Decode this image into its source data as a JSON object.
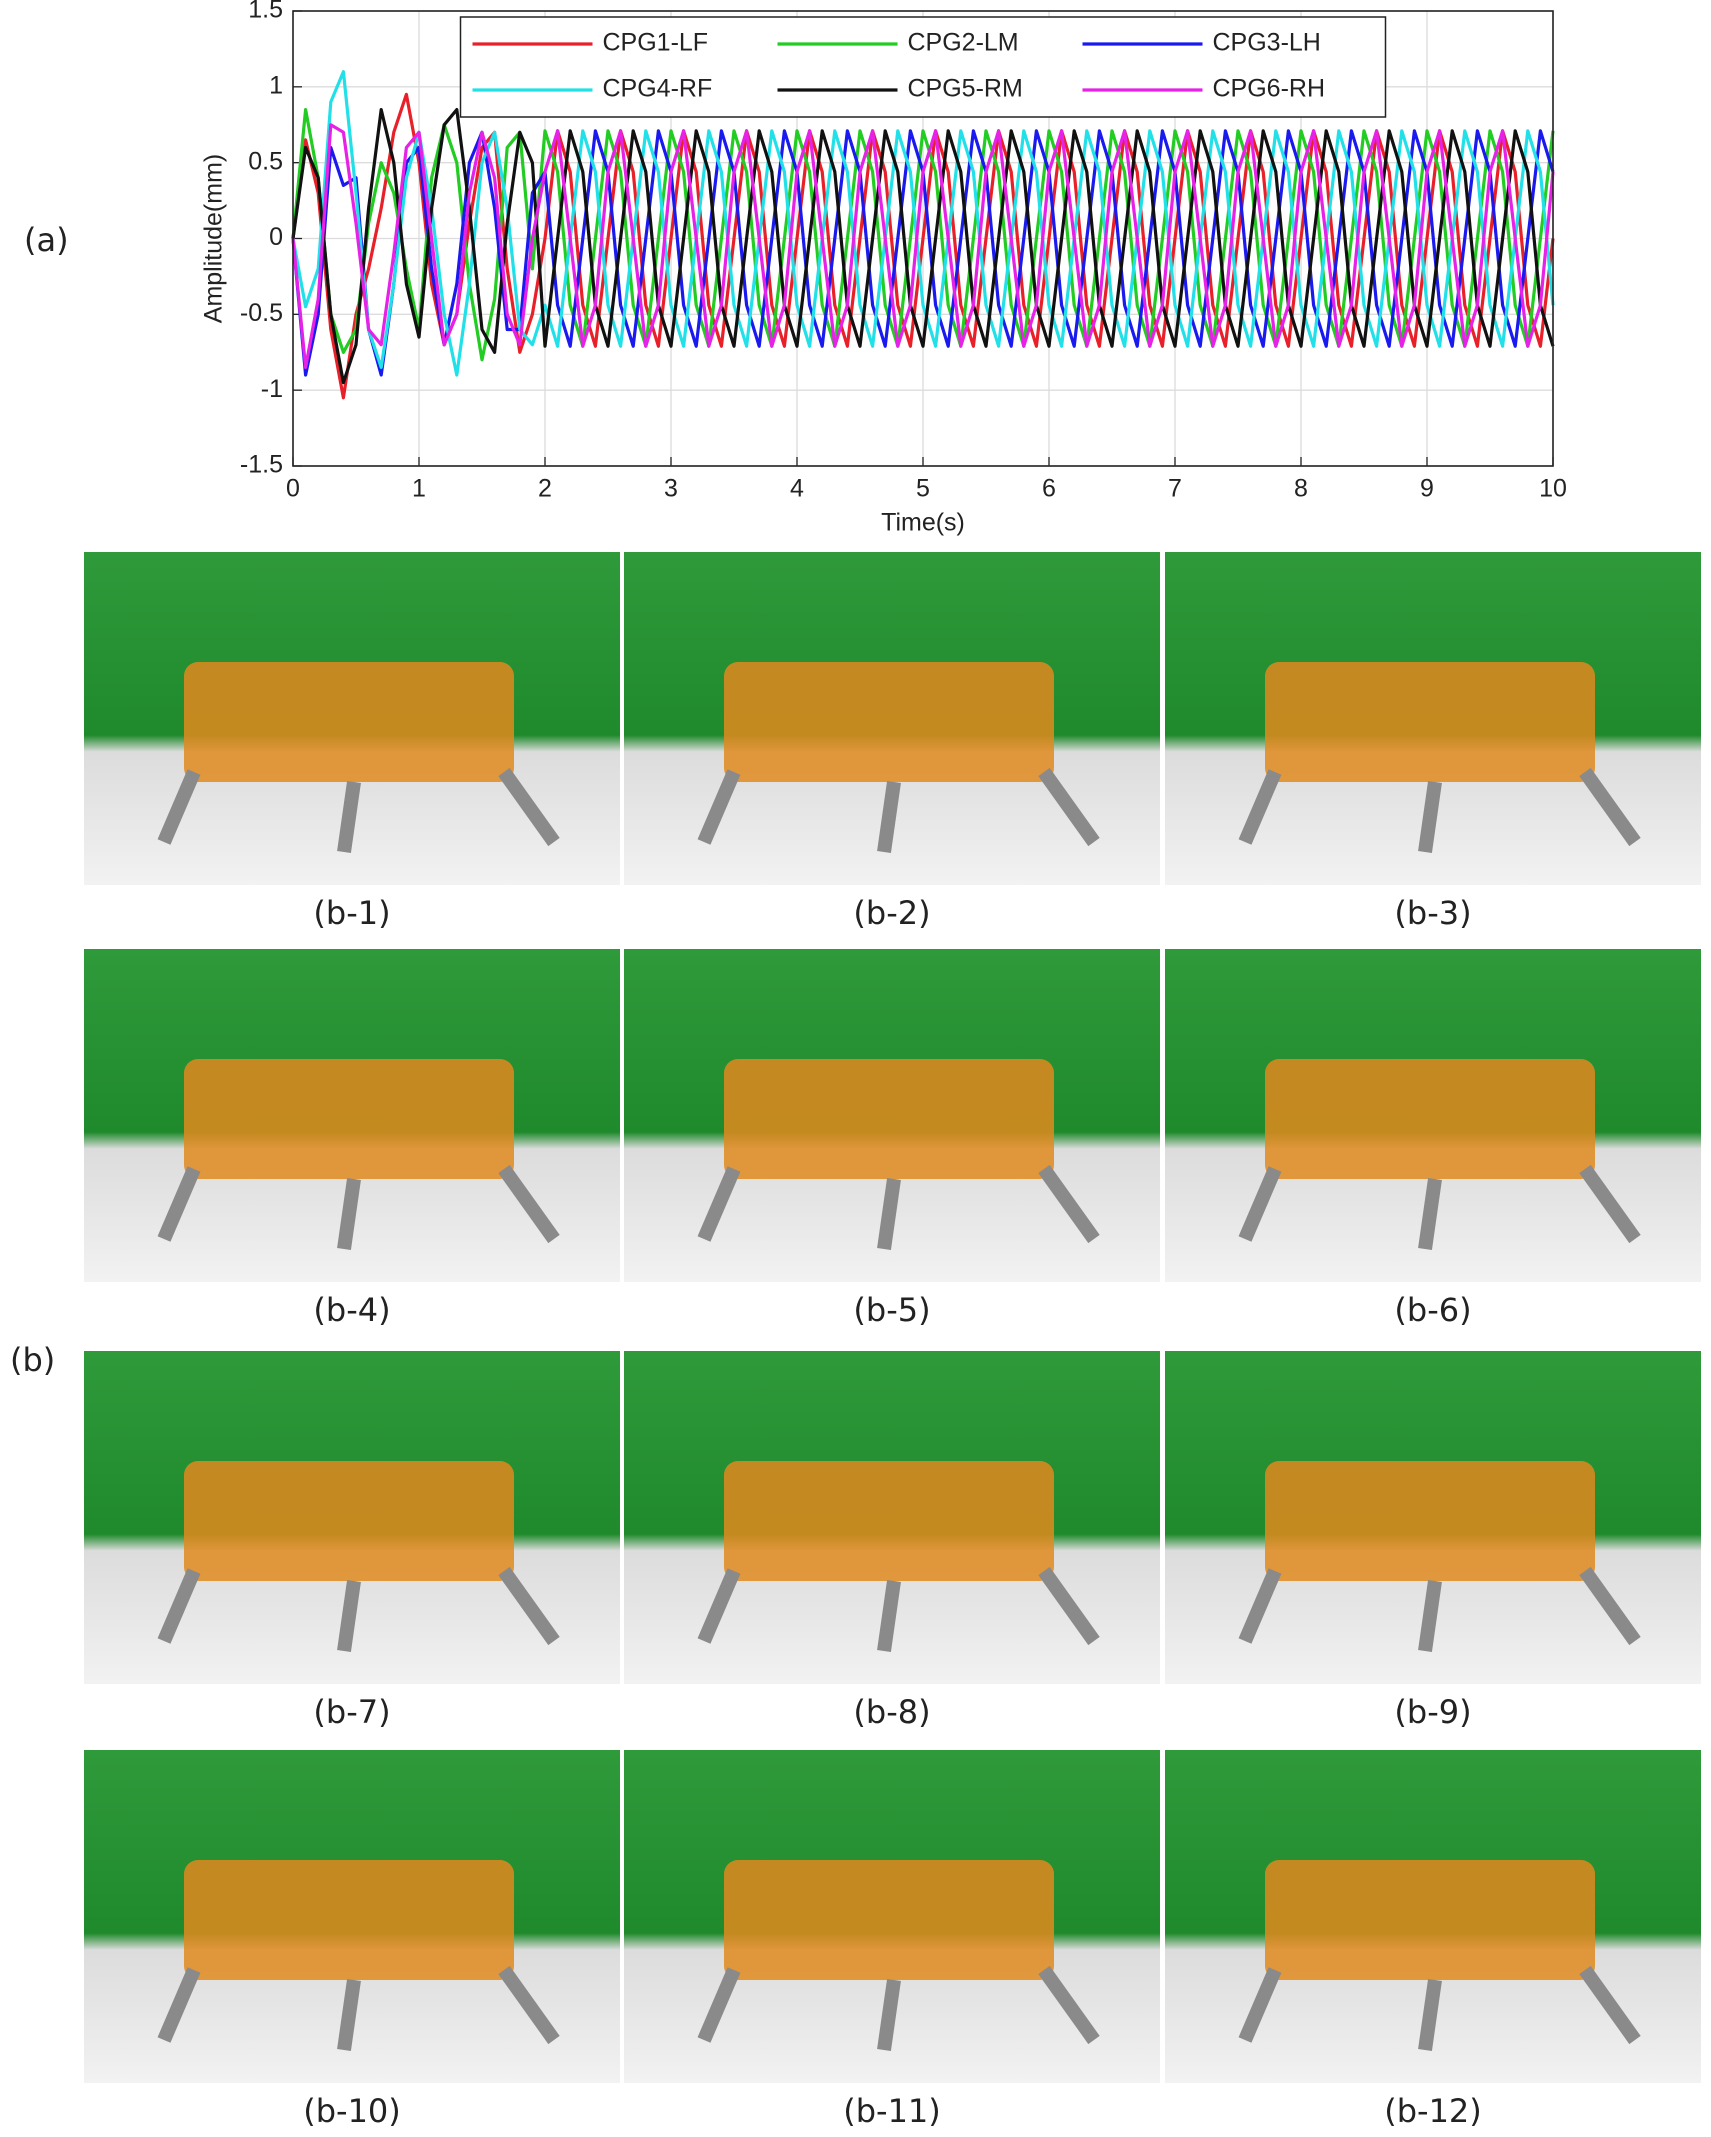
{
  "chart_data": {
    "type": "line",
    "xlabel": "Time(s)",
    "ylabel": "Amplitude(mm)",
    "xlim": [
      0,
      10
    ],
    "ylim": [
      -1.5,
      1.5
    ],
    "xticks": [
      0,
      1,
      2,
      3,
      4,
      5,
      6,
      7,
      8,
      9,
      10
    ],
    "yticks": [
      -1.5,
      -1,
      -0.5,
      0,
      0.5,
      1,
      1.5
    ],
    "grid": true,
    "legend_loc": "upper-center",
    "x": [
      0,
      0.1,
      0.2,
      0.3,
      0.4,
      0.5,
      0.6,
      0.7,
      0.8,
      0.9,
      1,
      1.1,
      1.2,
      1.3,
      1.4,
      1.5,
      1.6,
      1.7,
      1.8,
      1.9,
      2,
      2.1,
      2.2,
      2.3,
      2.4,
      2.5,
      2.6,
      2.7,
      2.8,
      2.9,
      3,
      3.1,
      3.2,
      3.3,
      3.4,
      3.5,
      3.6,
      3.7,
      3.8,
      3.9,
      4,
      4.1,
      4.2,
      4.3,
      4.4,
      4.5,
      4.6,
      4.7,
      4.8,
      4.9,
      5,
      5.1,
      5.2,
      5.3,
      5.4,
      5.5,
      5.6,
      5.7,
      5.8,
      5.9,
      6,
      6.1,
      6.2,
      6.3,
      6.4,
      6.5,
      6.6,
      6.7,
      6.8,
      6.9,
      7,
      7.1,
      7.2,
      7.3,
      7.4,
      7.5,
      7.6,
      7.7,
      7.8,
      7.9,
      8,
      8.1,
      8.2,
      8.3,
      8.4,
      8.5,
      8.6,
      8.7,
      8.8,
      8.9,
      9,
      9.1,
      9.2,
      9.3,
      9.4,
      9.5,
      9.6,
      9.7,
      9.8,
      9.9,
      10
    ],
    "series": [
      {
        "name": "CPG1-LF",
        "color": "#e8202a",
        "values": [
          0,
          0.65,
          0.3,
          -0.6,
          -1.05,
          -0.5,
          -0.2,
          0.2,
          0.7,
          0.95,
          0.5,
          -0.3,
          -0.7,
          -0.5,
          0.1,
          0.6,
          0.7,
          -0.2,
          -0.75,
          -0.5,
          0,
          0.71,
          0.44,
          -0.44,
          -0.71,
          0,
          0.71,
          0.44,
          -0.44,
          -0.71,
          0,
          0.71,
          0.44,
          -0.44,
          -0.71,
          0,
          0.71,
          0.44,
          -0.44,
          -0.71,
          0,
          0.71,
          0.44,
          -0.44,
          -0.71,
          0,
          0.71,
          0.44,
          -0.44,
          -0.71,
          0,
          0.71,
          0.44,
          -0.44,
          -0.71,
          0,
          0.71,
          0.44,
          -0.44,
          -0.71,
          0,
          0.71,
          0.44,
          -0.44,
          -0.71,
          0,
          0.71,
          0.44,
          -0.44,
          -0.71,
          0,
          0.71,
          0.44,
          -0.44,
          -0.71,
          0,
          0.71,
          0.44,
          -0.44,
          -0.71,
          0,
          0.71,
          0.44,
          -0.44,
          -0.71,
          0,
          0.71,
          0.44,
          -0.44,
          -0.71,
          0,
          0.71,
          0.44,
          -0.44,
          -0.71,
          0,
          0.71,
          0.44,
          -0.44,
          -0.71,
          0
        ]
      },
      {
        "name": "CPG2-LM",
        "color": "#22cc22",
        "values": [
          0,
          0.85,
          0.4,
          -0.5,
          -0.75,
          -0.6,
          0.1,
          0.5,
          0.3,
          -0.2,
          -0.6,
          0.4,
          0.75,
          0.5,
          -0.3,
          -0.8,
          -0.4,
          0.6,
          0.7,
          -0.2,
          0.71,
          0.44,
          -0.44,
          -0.71,
          0,
          0.71,
          0.44,
          -0.44,
          -0.71,
          0,
          0.71,
          0.44,
          -0.44,
          -0.71,
          0,
          0.71,
          0.44,
          -0.44,
          -0.71,
          0,
          0.71,
          0.44,
          -0.44,
          -0.71,
          0,
          0.71,
          0.44,
          -0.44,
          -0.71,
          0,
          0.71,
          0.44,
          -0.44,
          -0.71,
          0,
          0.71,
          0.44,
          -0.44,
          -0.71,
          0,
          0.71,
          0.44,
          -0.44,
          -0.71,
          0,
          0.71,
          0.44,
          -0.44,
          -0.71,
          0,
          0.71,
          0.44,
          -0.44,
          -0.71,
          0,
          0.71,
          0.44,
          -0.44,
          -0.71,
          0,
          0.71,
          0.44,
          -0.44,
          -0.71,
          0,
          0.71,
          0.44,
          -0.44,
          -0.71,
          0,
          0.71,
          0.44,
          -0.44,
          -0.71,
          0,
          0.71,
          0.44,
          -0.44,
          -0.71,
          0,
          0.71
        ]
      },
      {
        "name": "CPG3-LH",
        "color": "#1a1aee",
        "values": [
          0,
          -0.9,
          -0.5,
          0.6,
          0.35,
          0.4,
          -0.6,
          -0.9,
          -0.3,
          0.5,
          0.6,
          -0.2,
          -0.7,
          -0.3,
          0.5,
          0.7,
          0.2,
          -0.6,
          -0.6,
          0.3,
          0.44,
          -0.44,
          -0.71,
          0,
          0.71,
          0.44,
          -0.44,
          -0.71,
          0,
          0.71,
          0.44,
          -0.44,
          -0.71,
          0,
          0.71,
          0.44,
          -0.44,
          -0.71,
          0,
          0.71,
          0.44,
          -0.44,
          -0.71,
          0,
          0.71,
          0.44,
          -0.44,
          -0.71,
          0,
          0.71,
          0.44,
          -0.44,
          -0.71,
          0,
          0.71,
          0.44,
          -0.44,
          -0.71,
          0,
          0.71,
          0.44,
          -0.44,
          -0.71,
          0,
          0.71,
          0.44,
          -0.44,
          -0.71,
          0,
          0.71,
          0.44,
          -0.44,
          -0.71,
          0,
          0.71,
          0.44,
          -0.44,
          -0.71,
          0,
          0.71,
          0.44,
          -0.44,
          -0.71,
          0,
          0.71,
          0.44,
          -0.44,
          -0.71,
          0,
          0.71,
          0.44,
          -0.44,
          -0.71,
          0,
          0.71,
          0.44,
          -0.44,
          -0.71,
          0,
          0.71,
          0.44
        ]
      },
      {
        "name": "CPG4-RF",
        "color": "#22e0e8",
        "values": [
          0,
          -0.45,
          -0.2,
          0.9,
          1.1,
          0.3,
          -0.6,
          -0.85,
          -0.3,
          0.4,
          0.7,
          0.2,
          -0.5,
          -0.9,
          -0.3,
          0.5,
          0.7,
          0.2,
          -0.6,
          -0.7,
          -0.44,
          -0.71,
          0,
          0.71,
          0.44,
          -0.44,
          -0.71,
          0,
          0.71,
          0.44,
          -0.44,
          -0.71,
          0,
          0.71,
          0.44,
          -0.44,
          -0.71,
          0,
          0.71,
          0.44,
          -0.44,
          -0.71,
          0,
          0.71,
          0.44,
          -0.44,
          -0.71,
          0,
          0.71,
          0.44,
          -0.44,
          -0.71,
          0,
          0.71,
          0.44,
          -0.44,
          -0.71,
          0,
          0.71,
          0.44,
          -0.44,
          -0.71,
          0,
          0.71,
          0.44,
          -0.44,
          -0.71,
          0,
          0.71,
          0.44,
          -0.44,
          -0.71,
          0,
          0.71,
          0.44,
          -0.44,
          -0.71,
          0,
          0.71,
          0.44,
          -0.44,
          -0.71,
          0,
          0.71,
          0.44,
          -0.44,
          -0.71,
          0,
          0.71,
          0.44,
          -0.44,
          -0.71,
          0,
          0.71,
          0.44,
          -0.44,
          -0.71,
          0,
          0.71,
          0.44,
          -0.44
        ]
      },
      {
        "name": "CPG5-RM",
        "color": "#111111",
        "values": [
          0,
          0.6,
          0.4,
          -0.5,
          -0.95,
          -0.7,
          0.2,
          0.85,
          0.5,
          -0.3,
          -0.65,
          0.2,
          0.75,
          0.85,
          0.2,
          -0.6,
          -0.75,
          0.1,
          0.7,
          0.5,
          -0.71,
          0,
          0.71,
          0.44,
          -0.44,
          -0.71,
          0,
          0.71,
          0.44,
          -0.44,
          -0.71,
          0,
          0.71,
          0.44,
          -0.44,
          -0.71,
          0,
          0.71,
          0.44,
          -0.44,
          -0.71,
          0,
          0.71,
          0.44,
          -0.44,
          -0.71,
          0,
          0.71,
          0.44,
          -0.44,
          -0.71,
          0,
          0.71,
          0.44,
          -0.44,
          -0.71,
          0,
          0.71,
          0.44,
          -0.44,
          -0.71,
          0,
          0.71,
          0.44,
          -0.44,
          -0.71,
          0,
          0.71,
          0.44,
          -0.44,
          -0.71,
          0,
          0.71,
          0.44,
          -0.44,
          -0.71,
          0,
          0.71,
          0.44,
          -0.44,
          -0.71,
          0,
          0.71,
          0.44,
          -0.44,
          -0.71,
          0,
          0.71,
          0.44,
          -0.44,
          -0.71,
          0,
          0.71,
          0.44,
          -0.44,
          -0.71,
          0,
          0.71,
          0.44,
          -0.44,
          -0.71
        ]
      },
      {
        "name": "CPG6-RH",
        "color": "#e522e5",
        "values": [
          0,
          -0.85,
          -0.4,
          0.75,
          0.7,
          0.1,
          -0.6,
          -0.7,
          -0.1,
          0.6,
          0.7,
          0,
          -0.7,
          -0.5,
          0.3,
          0.7,
          0.4,
          -0.5,
          -0.7,
          0,
          0.44,
          0.71,
          0,
          -0.71,
          -0.44,
          0.44,
          0.71,
          0,
          -0.71,
          -0.44,
          0.44,
          0.71,
          0,
          -0.71,
          -0.44,
          0.44,
          0.71,
          0,
          -0.71,
          -0.44,
          0.44,
          0.71,
          0,
          -0.71,
          -0.44,
          0.44,
          0.71,
          0,
          -0.71,
          -0.44,
          0.44,
          0.71,
          0,
          -0.71,
          -0.44,
          0.44,
          0.71,
          0,
          -0.71,
          -0.44,
          0.44,
          0.71,
          0,
          -0.71,
          -0.44,
          0.44,
          0.71,
          0,
          -0.71,
          -0.44,
          0.44,
          0.71,
          0,
          -0.71,
          -0.44,
          0.44,
          0.71,
          0,
          -0.71,
          -0.44,
          0.44,
          0.71,
          0,
          -0.71,
          -0.44,
          0.44,
          0.71,
          0,
          -0.71,
          -0.44,
          0.44,
          0.71,
          0,
          -0.71,
          -0.44,
          0.44,
          0.71,
          0,
          -0.71,
          -0.44,
          0.44
        ]
      }
    ]
  },
  "figure": {
    "panel_labels": [
      "(a)",
      "(b)"
    ],
    "captions": [
      "(b-1)",
      "(b-2)",
      "(b-3)",
      "(b-4)",
      "(b-5)",
      "(b-6)",
      "(b-7)",
      "(b-8)",
      "(b-9)",
      "(b-10)",
      "(b-11)",
      "(b-12)"
    ]
  }
}
